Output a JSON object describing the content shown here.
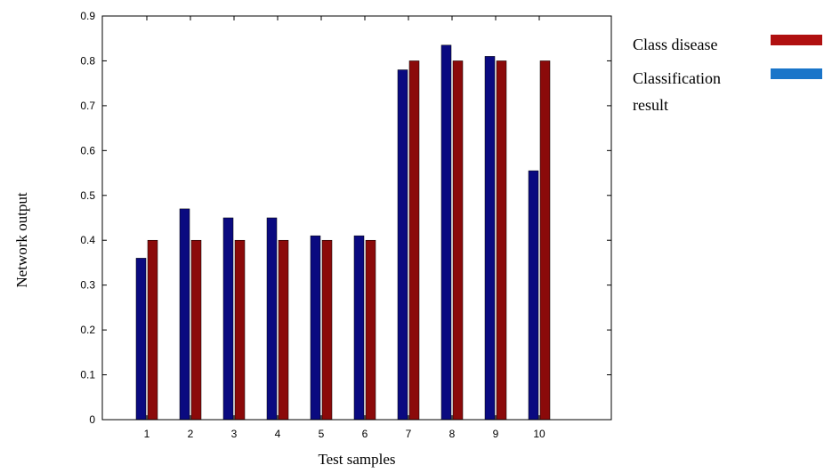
{
  "chart_data": {
    "type": "bar",
    "title": "",
    "xlabel": "Test samples",
    "ylabel": "Network output",
    "categories": [
      "1",
      "2",
      "3",
      "4",
      "5",
      "6",
      "7",
      "8",
      "9",
      "10"
    ],
    "series": [
      {
        "name": "Classification result",
        "color": "#0a0a80",
        "values": [
          0.36,
          0.47,
          0.45,
          0.45,
          0.41,
          0.41,
          0.78,
          0.835,
          0.81,
          0.555
        ]
      },
      {
        "name": "Class disease",
        "color": "#8b0a0a",
        "values": [
          0.4,
          0.4,
          0.4,
          0.4,
          0.4,
          0.4,
          0.8,
          0.8,
          0.8,
          0.8
        ]
      }
    ],
    "ylim": [
      0,
      0.9
    ],
    "yticks": [
      "0",
      "0.1",
      "0.2",
      "0.3",
      "0.4",
      "0.5",
      "0.6",
      "0.7",
      "0.8",
      "0.9"
    ],
    "grid": false
  },
  "legend": {
    "entries": [
      {
        "lines": [
          "Class disease"
        ],
        "color": "#b01010"
      },
      {
        "lines": [
          "Classification",
          "result"
        ],
        "color": "#1a75c9"
      }
    ]
  }
}
